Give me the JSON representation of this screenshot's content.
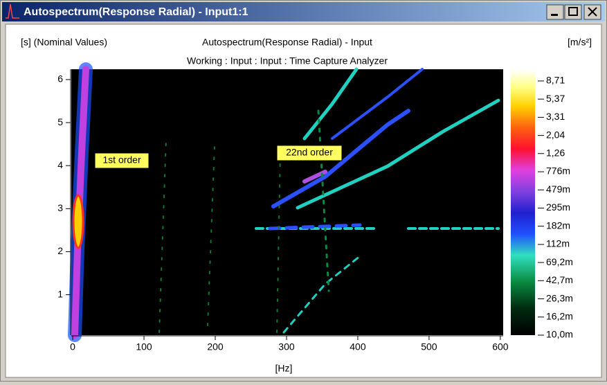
{
  "window": {
    "title": "Autospectrum(Response Radial) - Input1:1"
  },
  "chart_data": {
    "type": "spectrogram",
    "title": "Autospectrum(Response Radial) - Input",
    "subtitle": "Working : Input : Input : Time Capture Analyzer",
    "y_label": "[s] (Nominal Values)",
    "x_label": "[Hz]",
    "colorbar_label": "[m/s²]",
    "xlim": [
      -2,
      604
    ],
    "xticks": [
      0,
      100,
      200,
      300,
      400,
      500,
      600
    ],
    "ylim": [
      0.06,
      6.24
    ],
    "yticks": [
      1,
      2,
      3,
      4,
      5,
      6
    ],
    "colorbar_scale": "log",
    "colorbar_lim": [
      0.01,
      11.9
    ],
    "colorbar_ticks": [
      {
        "value": 8.71,
        "label": "8,71"
      },
      {
        "value": 5.37,
        "label": "5,37"
      },
      {
        "value": 3.31,
        "label": "3,31"
      },
      {
        "value": 2.04,
        "label": "2,04"
      },
      {
        "value": 1.26,
        "label": "1,26"
      },
      {
        "value": 0.776,
        "label": "776m"
      },
      {
        "value": 0.479,
        "label": "479m"
      },
      {
        "value": 0.295,
        "label": "295m"
      },
      {
        "value": 0.182,
        "label": "182m"
      },
      {
        "value": 0.112,
        "label": "112m"
      },
      {
        "value": 0.0692,
        "label": "69,2m"
      },
      {
        "value": 0.0427,
        "label": "42,7m"
      },
      {
        "value": 0.0263,
        "label": "26,3m"
      },
      {
        "value": 0.0162,
        "label": "16,2m"
      },
      {
        "value": 0.01,
        "label": "10,0m"
      }
    ],
    "annotations": [
      "1st order",
      "22nd order"
    ]
  }
}
